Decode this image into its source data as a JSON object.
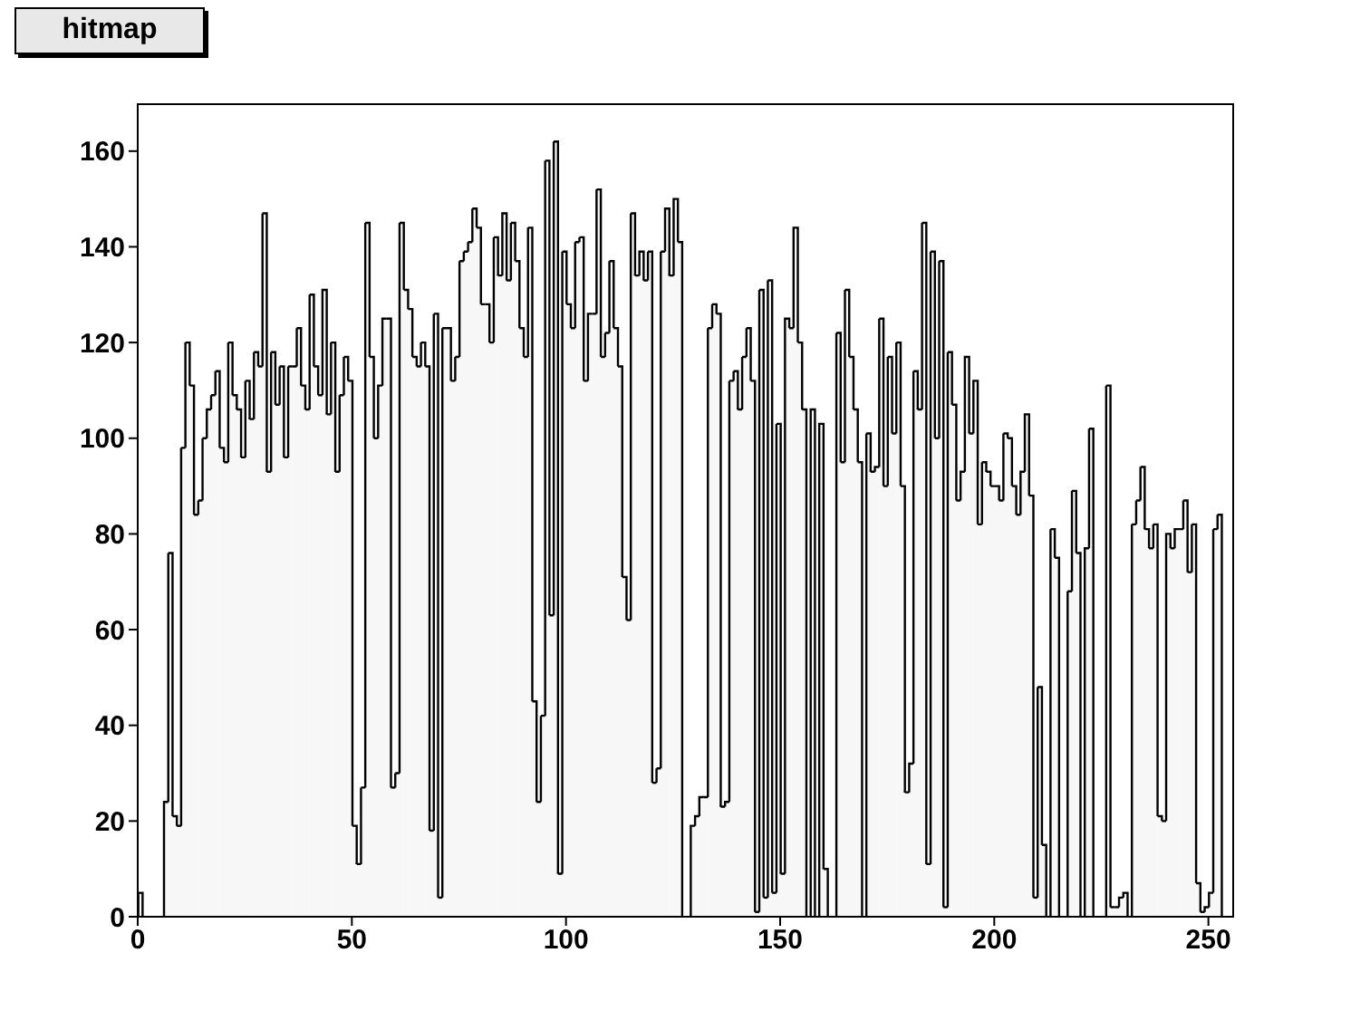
{
  "chart_data": {
    "type": "histogram",
    "title": "hitmap",
    "color": "#000000",
    "bins": [
      0,
      1,
      2,
      3,
      4,
      5,
      6,
      7,
      8,
      9,
      10,
      11,
      12,
      13,
      14,
      15,
      16,
      17,
      18,
      19,
      20,
      21,
      22,
      23,
      24,
      25,
      26,
      27,
      28,
      29,
      30,
      31,
      32,
      33,
      34,
      35,
      36,
      37,
      38,
      39,
      40,
      41,
      42,
      43,
      44,
      45,
      46,
      47,
      48,
      49,
      50,
      51,
      52,
      53,
      54,
      55,
      56,
      57,
      58,
      59,
      60,
      61,
      62,
      63,
      64,
      65,
      66,
      67,
      68,
      69,
      70,
      71,
      72,
      73,
      74,
      75,
      76,
      77,
      78,
      79,
      80,
      81,
      82,
      83,
      84,
      85,
      86,
      87,
      88,
      89,
      90,
      91,
      92,
      93,
      94,
      95,
      96,
      97,
      98,
      99,
      100,
      101,
      102,
      103,
      104,
      105,
      106,
      107,
      108,
      109,
      110,
      111,
      112,
      113,
      114,
      115,
      116,
      117,
      118,
      119,
      120,
      121,
      122,
      123,
      124,
      125,
      126,
      127,
      128,
      129,
      130,
      131,
      132,
      133,
      134,
      135,
      136,
      137,
      138,
      139,
      140,
      141,
      142,
      143,
      144,
      145,
      146,
      147,
      148,
      149,
      150,
      151,
      152,
      153,
      154,
      155,
      156,
      157,
      158,
      159,
      160,
      161,
      162,
      163,
      164,
      165,
      166,
      167,
      168,
      169,
      170,
      171,
      172,
      173,
      174,
      175,
      176,
      177,
      178,
      179,
      180,
      181,
      182,
      183,
      184,
      185,
      186,
      187,
      188,
      189,
      190,
      191,
      192,
      193,
      194,
      195,
      196,
      197,
      198,
      199,
      200,
      201,
      202,
      203,
      204,
      205,
      206,
      207,
      208,
      209,
      210,
      211,
      212,
      213,
      214,
      215,
      216,
      217,
      218,
      219,
      220,
      221,
      222,
      223,
      224,
      225,
      226,
      227,
      228,
      229,
      230,
      231,
      232,
      233,
      234,
      235,
      236,
      237,
      238,
      239,
      240,
      241,
      242,
      243,
      244,
      245,
      246,
      247,
      248,
      249,
      250,
      251,
      252,
      253,
      254,
      255,
      256
    ],
    "values": [
      5,
      0,
      0,
      0,
      0,
      0,
      24,
      76,
      21,
      19,
      98,
      120,
      111,
      84,
      87,
      100,
      106,
      109,
      114,
      98,
      95,
      120,
      109,
      106,
      96,
      112,
      104,
      118,
      115,
      147,
      93,
      118,
      107,
      115,
      96,
      115,
      115,
      123,
      111,
      106,
      130,
      115,
      109,
      131,
      105,
      120,
      93,
      109,
      117,
      112,
      19,
      11,
      27,
      145,
      117,
      100,
      111,
      125,
      125,
      27,
      30,
      145,
      131,
      127,
      117,
      115,
      120,
      115,
      18,
      126,
      4,
      123,
      123,
      112,
      117,
      137,
      139,
      141,
      148,
      144,
      128,
      128,
      120,
      142,
      134,
      147,
      133,
      145,
      137,
      123,
      117,
      144,
      45,
      24,
      42,
      158,
      63,
      162,
      9,
      139,
      128,
      123,
      141,
      142,
      112,
      126,
      126,
      152,
      117,
      122,
      137,
      123,
      115,
      71,
      62,
      147,
      134,
      139,
      133,
      139,
      28,
      31,
      139,
      148,
      134,
      150,
      141,
      0,
      0,
      19,
      21,
      25,
      25,
      123,
      128,
      126,
      23,
      24,
      112,
      114,
      106,
      117,
      123,
      112,
      1,
      131,
      4,
      133,
      5,
      103,
      9,
      125,
      123,
      144,
      120,
      106,
      0,
      106,
      0,
      103,
      10,
      0,
      0,
      122,
      95,
      131,
      117,
      106,
      95,
      0,
      101,
      93,
      94,
      125,
      90,
      117,
      101,
      120,
      90,
      26,
      32,
      114,
      106,
      145,
      11,
      139,
      100,
      137,
      2,
      118,
      107,
      87,
      93,
      117,
      101,
      112,
      82,
      95,
      93,
      90,
      90,
      87,
      101,
      100,
      90,
      84,
      93,
      105,
      88,
      4,
      48,
      15,
      0,
      81,
      75,
      0,
      0,
      68,
      89,
      76,
      0,
      77,
      102,
      0,
      0,
      0,
      111,
      2,
      2,
      4,
      5,
      0,
      82,
      87,
      94,
      81,
      77,
      82,
      21,
      20,
      80,
      77,
      81,
      81,
      87,
      72,
      82,
      7,
      1,
      2,
      5,
      81,
      84,
      0,
      0,
      0
    ],
    "xlim": [
      0,
      256
    ],
    "ylim": [
      0,
      170
    ],
    "xticks": [
      0,
      50,
      100,
      150,
      200,
      250
    ],
    "yticks": [
      0,
      20,
      40,
      60,
      80,
      100,
      120,
      140,
      160
    ]
  }
}
